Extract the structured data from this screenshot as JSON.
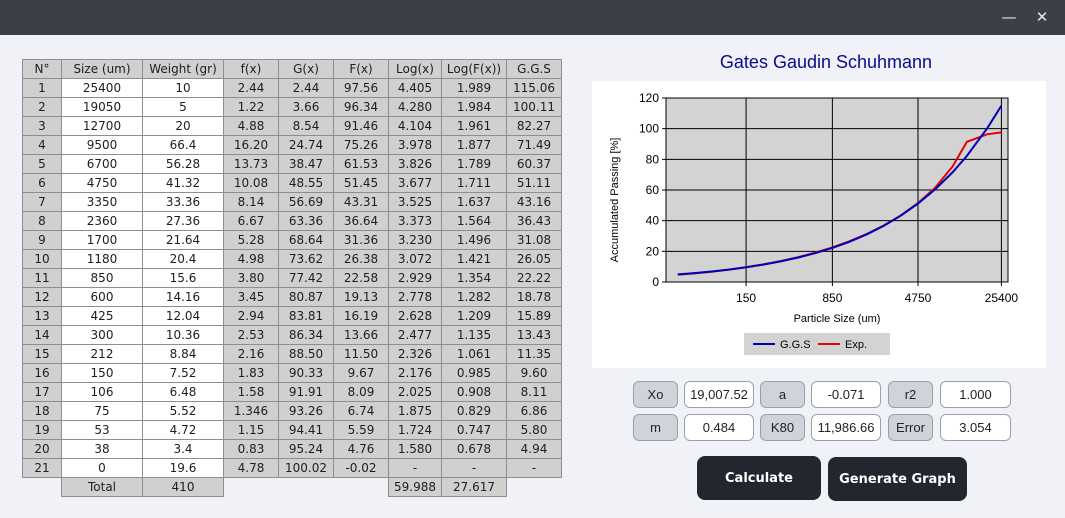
{
  "window": {
    "minimize_glyph": "—",
    "close_glyph": "✕"
  },
  "table": {
    "headers": [
      "N°",
      "Size (um)",
      "Weight (gr)",
      "f(x)",
      "G(x)",
      "F(x)",
      "Log(x)",
      "Log(F(x))",
      "G.G.S"
    ],
    "rows": [
      [
        "1",
        "25400",
        "10",
        "2.44",
        "2.44",
        "97.56",
        "4.405",
        "1.989",
        "115.06"
      ],
      [
        "2",
        "19050",
        "5",
        "1.22",
        "3.66",
        "96.34",
        "4.280",
        "1.984",
        "100.11"
      ],
      [
        "3",
        "12700",
        "20",
        "4.88",
        "8.54",
        "91.46",
        "4.104",
        "1.961",
        "82.27"
      ],
      [
        "4",
        "9500",
        "66.4",
        "16.20",
        "24.74",
        "75.26",
        "3.978",
        "1.877",
        "71.49"
      ],
      [
        "5",
        "6700",
        "56.28",
        "13.73",
        "38.47",
        "61.53",
        "3.826",
        "1.789",
        "60.37"
      ],
      [
        "6",
        "4750",
        "41.32",
        "10.08",
        "48.55",
        "51.45",
        "3.677",
        "1.711",
        "51.11"
      ],
      [
        "7",
        "3350",
        "33.36",
        "8.14",
        "56.69",
        "43.31",
        "3.525",
        "1.637",
        "43.16"
      ],
      [
        "8",
        "2360",
        "27.36",
        "6.67",
        "63.36",
        "36.64",
        "3.373",
        "1.564",
        "36.43"
      ],
      [
        "9",
        "1700",
        "21.64",
        "5.28",
        "68.64",
        "31.36",
        "3.230",
        "1.496",
        "31.08"
      ],
      [
        "10",
        "1180",
        "20.4",
        "4.98",
        "73.62",
        "26.38",
        "3.072",
        "1.421",
        "26.05"
      ],
      [
        "11",
        "850",
        "15.6",
        "3.80",
        "77.42",
        "22.58",
        "2.929",
        "1.354",
        "22.22"
      ],
      [
        "12",
        "600",
        "14.16",
        "3.45",
        "80.87",
        "19.13",
        "2.778",
        "1.282",
        "18.78"
      ],
      [
        "13",
        "425",
        "12.04",
        "2.94",
        "83.81",
        "16.19",
        "2.628",
        "1.209",
        "15.89"
      ],
      [
        "14",
        "300",
        "10.36",
        "2.53",
        "86.34",
        "13.66",
        "2.477",
        "1.135",
        "13.43"
      ],
      [
        "15",
        "212",
        "8.84",
        "2.16",
        "88.50",
        "11.50",
        "2.326",
        "1.061",
        "11.35"
      ],
      [
        "16",
        "150",
        "7.52",
        "1.83",
        "90.33",
        "9.67",
        "2.176",
        "0.985",
        "9.60"
      ],
      [
        "17",
        "106",
        "6.48",
        "1.58",
        "91.91",
        "8.09",
        "2.025",
        "0.908",
        "8.11"
      ],
      [
        "18",
        "75",
        "5.52",
        "1.346",
        "93.26",
        "6.74",
        "1.875",
        "0.829",
        "6.86"
      ],
      [
        "19",
        "53",
        "4.72",
        "1.15",
        "94.41",
        "5.59",
        "1.724",
        "0.747",
        "5.80"
      ],
      [
        "20",
        "38",
        "3.4",
        "0.83",
        "95.24",
        "4.76",
        "1.580",
        "0.678",
        "4.94"
      ],
      [
        "21",
        "0",
        "19.6",
        "4.78",
        "100.02",
        "-0.02",
        "-",
        "-",
        "-"
      ]
    ],
    "total": {
      "label": "Total",
      "weight": "410",
      "log_x": "59.988",
      "log_fx": "27.617"
    }
  },
  "chart_data": {
    "type": "line",
    "title": "Gates Gaudin Schuhmann",
    "xlabel": "Particle Size (um)",
    "ylabel": "Accumulated Passing [%]",
    "x_scale": "log",
    "x_ticks": [
      "150",
      "850",
      "4750",
      "25400"
    ],
    "ylim": [
      0,
      120
    ],
    "y_ticks": [
      "0",
      "20",
      "40",
      "60",
      "80",
      "100",
      "120"
    ],
    "grid": true,
    "legend_position": "bottom",
    "x": [
      38,
      53,
      75,
      106,
      150,
      212,
      300,
      425,
      600,
      850,
      1180,
      1700,
      2360,
      3350,
      4750,
      6700,
      9500,
      12700,
      19050,
      25400
    ],
    "series": [
      {
        "name": "G.G.S",
        "color": "#0000bb",
        "values": [
          4.94,
          5.8,
          6.86,
          8.11,
          9.6,
          11.35,
          13.43,
          15.89,
          18.78,
          22.22,
          26.05,
          31.08,
          36.43,
          43.16,
          51.11,
          60.37,
          71.49,
          82.27,
          100.11,
          115.06
        ]
      },
      {
        "name": "Exp.",
        "color": "#e60000",
        "values": [
          4.76,
          5.59,
          6.74,
          8.09,
          9.67,
          11.5,
          13.66,
          16.19,
          19.13,
          22.58,
          26.38,
          31.36,
          36.64,
          43.31,
          51.45,
          61.53,
          75.26,
          91.46,
          96.34,
          97.56
        ]
      }
    ]
  },
  "params": {
    "xo_label": "Xo",
    "xo_value": "19,007.52",
    "a_label": "a",
    "a_value": "-0.071",
    "r2_label": "r2",
    "r2_value": "1.000",
    "m_label": "m",
    "m_value": "0.484",
    "k80_label": "K80",
    "k80_value": "11,986.66",
    "error_label": "Error",
    "error_value": "3.054"
  },
  "actions": {
    "calculate": "Calculate",
    "generate_graph": "Generate Graph"
  }
}
